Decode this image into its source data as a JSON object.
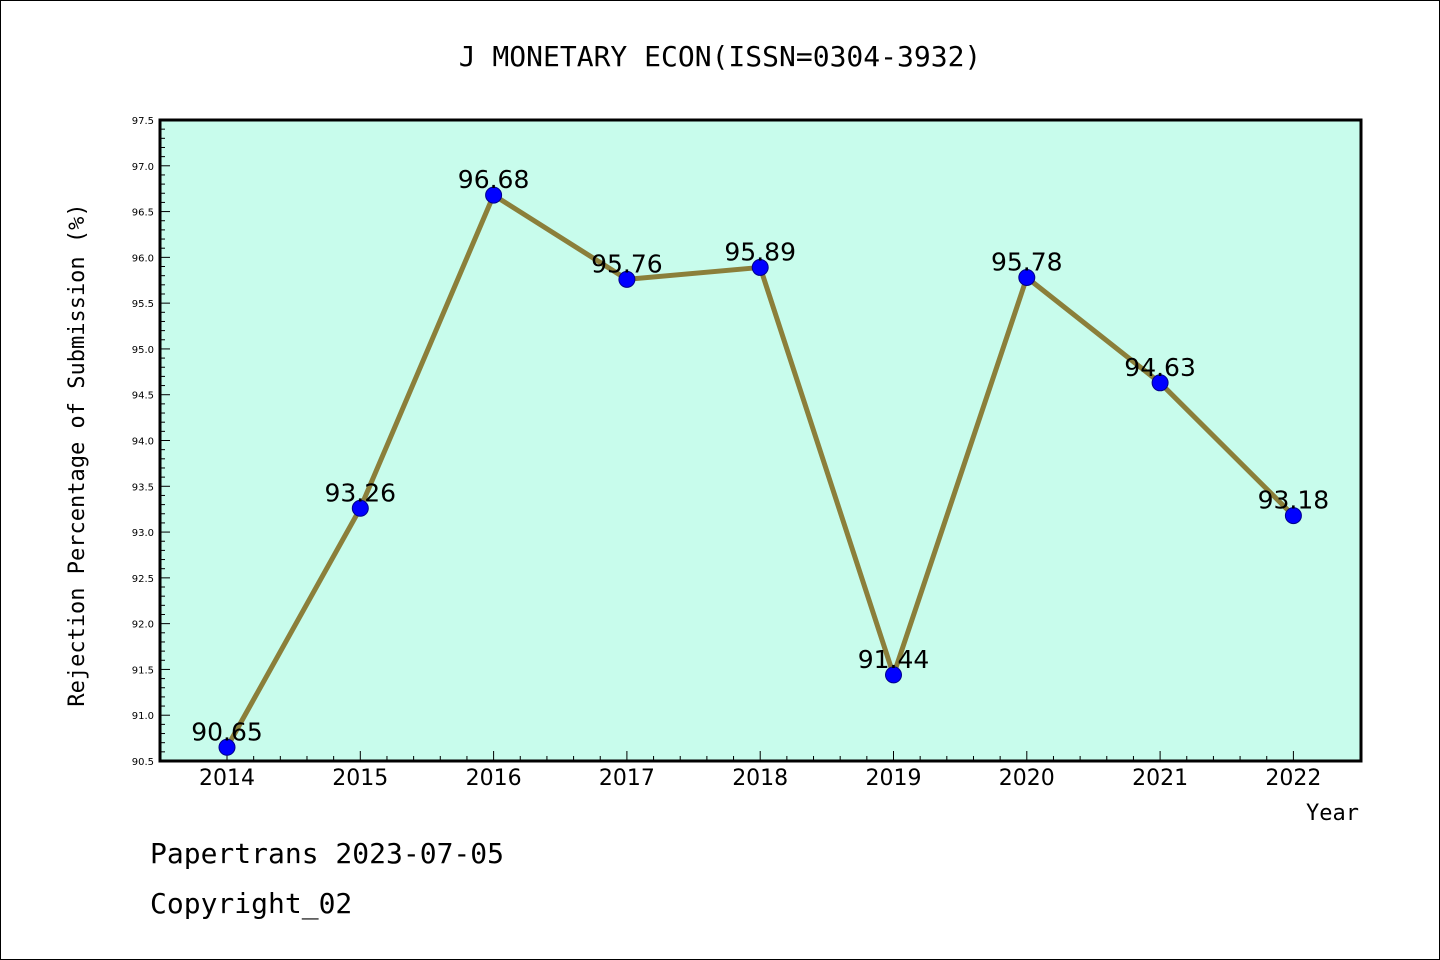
{
  "chart_data": {
    "type": "line",
    "title": "J MONETARY ECON(ISSN=0304-3932)",
    "xlabel": "Year",
    "ylabel": "Rejection Percentage of Submission (%)",
    "categories": [
      "2014",
      "2015",
      "2016",
      "2017",
      "2018",
      "2019",
      "2020",
      "2021",
      "2022"
    ],
    "series": [
      {
        "values": [
          90.65,
          93.26,
          96.68,
          95.76,
          95.89,
          91.44,
          95.78,
          94.63,
          93.18
        ],
        "labels": [
          "90.65",
          "93.26",
          "96.68",
          "95.76",
          "95.89",
          "91.44",
          "95.78",
          "94.63",
          "93.18"
        ]
      }
    ],
    "ylim": [
      90.5,
      97.5
    ],
    "yticks": [
      "90.5",
      "91.0",
      "91.5",
      "92.0",
      "92.5",
      "93.0",
      "93.5",
      "94.0",
      "94.5",
      "95.0",
      "95.5",
      "96.0",
      "96.5",
      "97.0",
      "97.5"
    ],
    "grid": false,
    "colors": {
      "plot_background": "#c8fcec",
      "line": "#8b7f3a",
      "marker": "#0000ff"
    }
  },
  "footer": {
    "line1": "Papertrans 2023-07-05",
    "line2": "Copyright_02"
  }
}
